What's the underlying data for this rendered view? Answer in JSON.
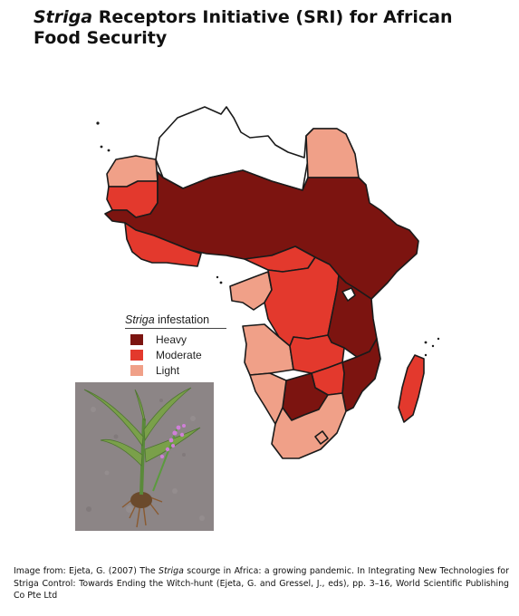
{
  "title": {
    "italic": "Striga",
    "rest": " Receptors Initiative (SRI) for African Food Security"
  },
  "legend": {
    "title_italic": "Striga",
    "title_rest": " infestation",
    "items": [
      {
        "label": "Heavy",
        "color": "#7c1410"
      },
      {
        "label": "Moderate",
        "color": "#e3392d"
      },
      {
        "label": "Light",
        "color": "#f0a088"
      }
    ]
  },
  "caption": {
    "part1": "Image from: Ejeta, G. (2007) The ",
    "italic": "Striga",
    "part2": " scourge in Africa: a growing pandemic. In Integrating New Technologies for Striga Control: Towards Ending the Witch-hunt (Ejeta, G. and Gressel, J., eds), pp. 3–16, World Scientific Publishing Co Pte Ltd"
  },
  "colors": {
    "heavy": "#7c1410",
    "moderate": "#e3392d",
    "light": "#f0a088",
    "none": "#ffffff",
    "border": "#1a1a1a",
    "soil": "#8c8586"
  }
}
